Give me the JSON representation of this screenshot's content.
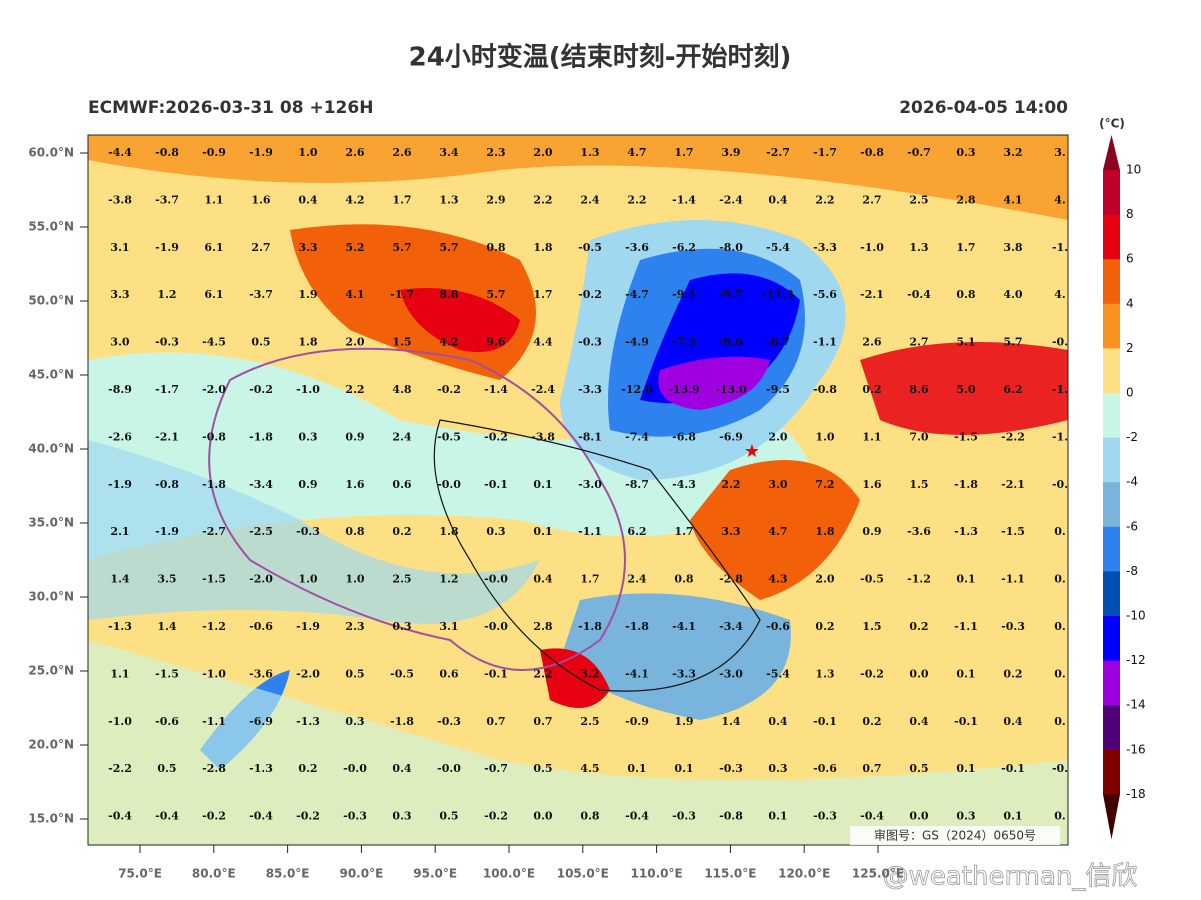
{
  "title": "24小时变温(结束时刻-开始时刻)",
  "subtitle_left": "ECMWF:2026-03-31 08 +126H",
  "subtitle_right": "2026-04-05 14:00",
  "lat_labels": [
    "60.0°N",
    "55.0°N",
    "50.0°N",
    "45.0°N",
    "40.0°N",
    "35.0°N",
    "30.0°N",
    "25.0°N",
    "20.0°N",
    "15.0°N"
  ],
  "lon_labels": [
    "75.0°E",
    "80.0°E",
    "85.0°E",
    "90.0°E",
    "95.0°E",
    "100.0°E",
    "105.0°E",
    "110.0°E",
    "115.0°E",
    "120.0°E",
    "125.0°E"
  ],
  "colorbar": {
    "unit": "(°C)",
    "labels": [
      "10",
      "8",
      "6",
      "4",
      "2",
      "0",
      "-2",
      "-4",
      "-6",
      "-8",
      "-10",
      "-12",
      "-14",
      "-16",
      "-18"
    ],
    "colors": [
      "#c0002b",
      "#e60012",
      "#f2600a",
      "#f7931e",
      "#fde083",
      "#c8f5e6",
      "#a0d8f0",
      "#78b4dc",
      "#2d82f0",
      "#0050b4",
      "#0000ff",
      "#a000e0",
      "#500078",
      "#800000"
    ]
  },
  "review_number": "审图号：GS（2024）0650号",
  "watermark": "@weatherman_信欣",
  "grid": [
    [
      "-4.4",
      "-0.8",
      "-0.9",
      "-1.9",
      "1.0",
      "2.6",
      "2.6",
      "3.4",
      "2.3",
      "2.0",
      "1.3",
      "4.7",
      "1.7",
      "3.9",
      "-2.7",
      "-1.7",
      "-0.8",
      "-0.7",
      "0.3",
      "3.2",
      "3."
    ],
    [
      "-3.8",
      "-3.7",
      "1.1",
      "1.6",
      "0.4",
      "4.2",
      "1.7",
      "1.3",
      "2.9",
      "2.2",
      "2.4",
      "2.2",
      "-1.4",
      "-2.4",
      "0.4",
      "2.2",
      "2.7",
      "2.5",
      "2.8",
      "4.1",
      "4."
    ],
    [
      "3.1",
      "-1.9",
      "6.1",
      "2.7",
      "3.3",
      "5.2",
      "5.7",
      "5.7",
      "0.8",
      "1.8",
      "-0.5",
      "-3.6",
      "-6.2",
      "-8.0",
      "-5.4",
      "-3.3",
      "-1.0",
      "1.3",
      "1.7",
      "3.8",
      "-1."
    ],
    [
      "3.3",
      "1.2",
      "6.1",
      "-3.7",
      "1.9",
      "4.1",
      "-1.7",
      "8.8",
      "5.7",
      "1.7",
      "-0.2",
      "-4.7",
      "-9.4",
      "-9.7",
      "-11.3",
      "-5.6",
      "-2.1",
      "-0.4",
      "0.8",
      "4.0",
      "4."
    ],
    [
      "3.0",
      "-0.3",
      "-4.5",
      "0.5",
      "1.8",
      "2.0",
      "1.5",
      "4.2",
      "9.6",
      "4.4",
      "-0.3",
      "-4.9",
      "-7.3",
      "-9.6",
      "-8.7",
      "-1.1",
      "2.6",
      "2.7",
      "5.1",
      "5.7",
      "-0."
    ],
    [
      "-8.9",
      "-1.7",
      "-2.0",
      "-0.2",
      "-1.0",
      "2.2",
      "4.8",
      "-0.2",
      "-1.4",
      "-2.4",
      "-3.3",
      "-12.0",
      "-13.9",
      "-13.0",
      "-9.5",
      "-0.8",
      "0.2",
      "8.6",
      "5.0",
      "6.2",
      "-1."
    ],
    [
      "-2.6",
      "-2.1",
      "-0.8",
      "-1.8",
      "0.3",
      "0.9",
      "2.4",
      "-0.5",
      "-0.2",
      "-3.8",
      "-8.1",
      "-7.4",
      "-6.8",
      "-6.9",
      "2.0",
      "1.0",
      "1.1",
      "7.0",
      "-1.5",
      "-2.2",
      "-1."
    ],
    [
      "-1.9",
      "-0.8",
      "-1.8",
      "-3.4",
      "0.9",
      "1.6",
      "0.6",
      "-0.0",
      "-0.1",
      "0.1",
      "-3.0",
      "-8.7",
      "-4.3",
      "2.2",
      "3.0",
      "7.2",
      "1.6",
      "1.5",
      "-1.8",
      "-2.1",
      "-0."
    ],
    [
      "2.1",
      "-1.9",
      "-2.7",
      "-2.5",
      "-0.3",
      "0.8",
      "0.2",
      "1.8",
      "0.3",
      "0.1",
      "-1.1",
      "6.2",
      "1.7",
      "3.3",
      "4.7",
      "1.8",
      "0.9",
      "-3.6",
      "-1.3",
      "-1.5",
      "0."
    ],
    [
      "1.4",
      "3.5",
      "-1.5",
      "-2.0",
      "1.0",
      "1.0",
      "2.5",
      "1.2",
      "-0.0",
      "0.4",
      "1.7",
      "2.4",
      "0.8",
      "-2.8",
      "4.3",
      "2.0",
      "-0.5",
      "-1.2",
      "0.1",
      "-1.1",
      "0."
    ],
    [
      "-1.3",
      "1.4",
      "-1.2",
      "-0.6",
      "-1.9",
      "2.3",
      "0.3",
      "3.1",
      "-0.0",
      "2.8",
      "-1.8",
      "-1.8",
      "-4.1",
      "-3.4",
      "-0.6",
      "0.2",
      "1.5",
      "0.2",
      "-1.1",
      "-0.3",
      "0."
    ],
    [
      "1.1",
      "-1.5",
      "-1.0",
      "-3.6",
      "-2.0",
      "0.5",
      "-0.5",
      "0.6",
      "-0.1",
      "2.2",
      "3.2",
      "-4.1",
      "-3.3",
      "-3.0",
      "-5.4",
      "1.3",
      "-0.2",
      "0.0",
      "0.1",
      "0.2",
      "0."
    ],
    [
      "-1.0",
      "-0.6",
      "-1.1",
      "-6.9",
      "-1.3",
      "0.3",
      "-1.8",
      "-0.3",
      "0.7",
      "0.7",
      "2.5",
      "-0.9",
      "1.9",
      "1.4",
      "0.4",
      "-0.1",
      "0.2",
      "0.4",
      "-0.1",
      "0.4",
      "0."
    ],
    [
      "-2.2",
      "0.5",
      "-2.8",
      "-1.3",
      "0.2",
      "-0.0",
      "0.4",
      "-0.0",
      "-0.7",
      "0.5",
      "4.5",
      "0.1",
      "0.1",
      "-0.3",
      "0.3",
      "-0.6",
      "0.7",
      "0.5",
      "0.1",
      "-0.1",
      "-0."
    ],
    [
      "-0.4",
      "-0.4",
      "-0.2",
      "-0.4",
      "-0.2",
      "-0.3",
      "0.3",
      "0.5",
      "-0.2",
      "0.0",
      "0.8",
      "-0.4",
      "-0.3",
      "-0.8",
      "0.1",
      "-0.3",
      "-0.4",
      "0.0",
      "0.3",
      "0.1",
      "0."
    ]
  ]
}
